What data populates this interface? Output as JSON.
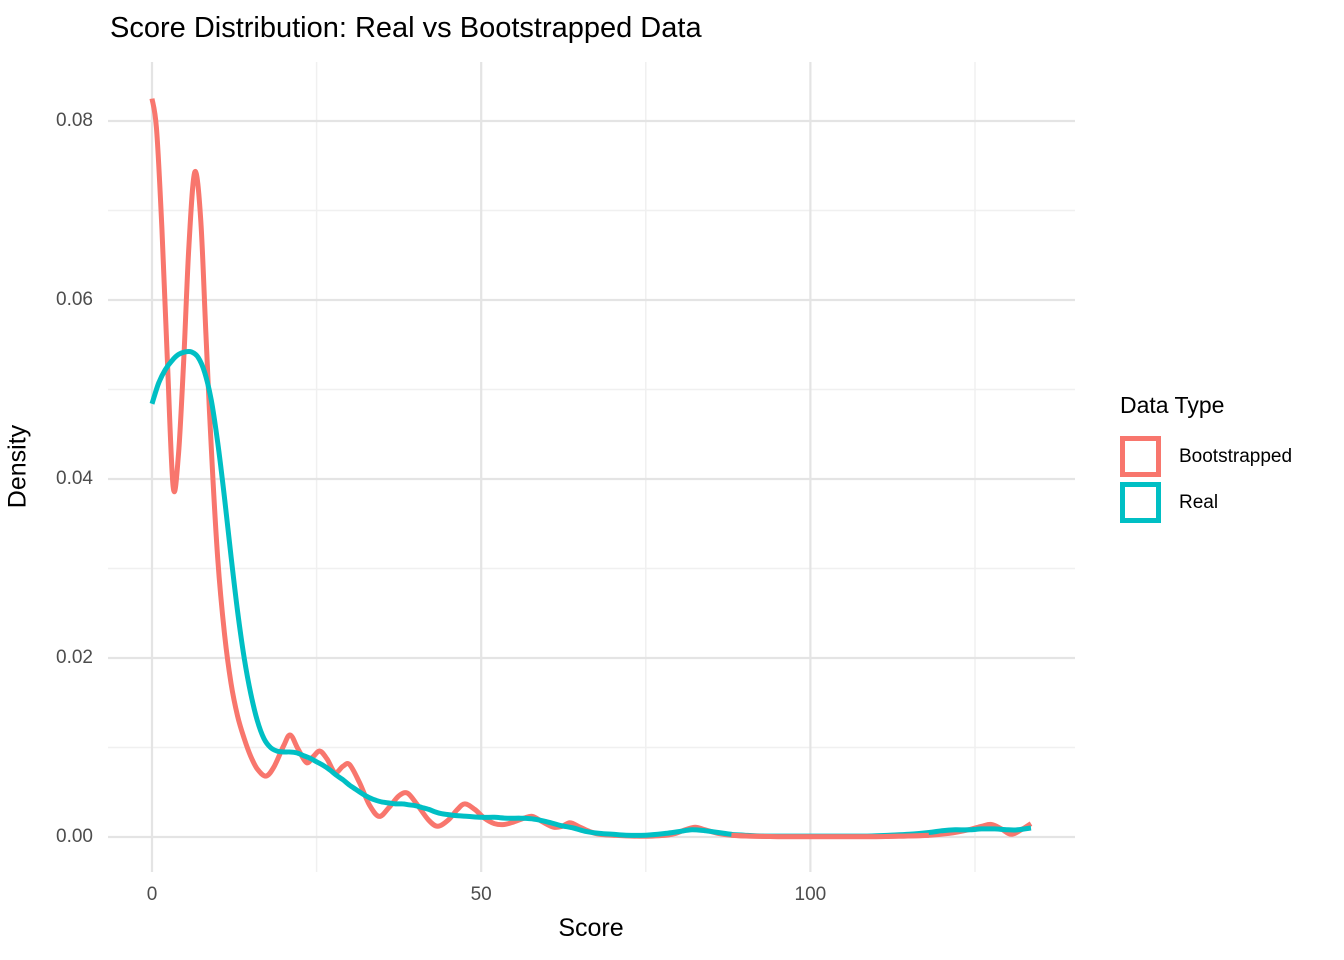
{
  "title": "Score Distribution: Real vs Bootstrapped Data",
  "legend": {
    "title": "Data Type",
    "entries": [
      {
        "label": "Bootstrapped",
        "color": "#F8766D"
      },
      {
        "label": "Real",
        "color": "#00BFC4"
      }
    ]
  },
  "chart_data": {
    "type": "line",
    "title": "Score Distribution: Real vs Bootstrapped Data",
    "xlabel": "Score",
    "ylabel": "Density",
    "xlim": [
      -6.7,
      140.2
    ],
    "ylim": [
      -0.0039,
      0.0866
    ],
    "grid": "major+minor",
    "legend_position": "right",
    "x_ticks": [
      0,
      50,
      100
    ],
    "x_tick_labels": [
      "0",
      "50",
      "100"
    ],
    "x_minor_ticks": [
      25,
      75,
      125
    ],
    "y_ticks": [
      0,
      0.02,
      0.04,
      0.06,
      0.08
    ],
    "y_tick_labels": [
      "0.00",
      "0.02",
      "0.04",
      "0.06",
      "0.08"
    ],
    "y_minor_ticks": [
      0.01,
      0.03,
      0.05,
      0.07
    ],
    "series": [
      {
        "name": "Bootstrapped",
        "color": "#F8766D",
        "points": [
          [
            0,
            0.0825
          ],
          [
            0.7,
            0.079
          ],
          [
            1.5,
            0.068
          ],
          [
            2.3,
            0.054
          ],
          [
            3.2,
            0.0392
          ],
          [
            4.0,
            0.0425
          ],
          [
            4.8,
            0.053
          ],
          [
            5.6,
            0.066
          ],
          [
            6.5,
            0.0743
          ],
          [
            7.4,
            0.069
          ],
          [
            8.2,
            0.056
          ],
          [
            9.0,
            0.0435
          ],
          [
            10,
            0.031
          ],
          [
            11,
            0.0228
          ],
          [
            12,
            0.0172
          ],
          [
            13,
            0.0135
          ],
          [
            14,
            0.011
          ],
          [
            15,
            0.009
          ],
          [
            16,
            0.0076
          ],
          [
            17.3,
            0.0068
          ],
          [
            18.5,
            0.0078
          ],
          [
            20,
            0.0102
          ],
          [
            21,
            0.0114
          ],
          [
            22.2,
            0.0098
          ],
          [
            23.5,
            0.0083
          ],
          [
            24.5,
            0.009
          ],
          [
            25.5,
            0.0096
          ],
          [
            26.6,
            0.0087
          ],
          [
            27.8,
            0.0072
          ],
          [
            29,
            0.0079
          ],
          [
            30,
            0.0081
          ],
          [
            31.5,
            0.0061
          ],
          [
            33,
            0.0036
          ],
          [
            34.5,
            0.0023
          ],
          [
            36,
            0.0033
          ],
          [
            37.5,
            0.0046
          ],
          [
            38.8,
            0.0049
          ],
          [
            40.3,
            0.0036
          ],
          [
            42,
            0.0019
          ],
          [
            43.4,
            0.0012
          ],
          [
            45,
            0.0019
          ],
          [
            46.3,
            0.003
          ],
          [
            47.5,
            0.0037
          ],
          [
            49,
            0.0031
          ],
          [
            50.5,
            0.0021
          ],
          [
            52,
            0.0015
          ],
          [
            53.5,
            0.0014
          ],
          [
            55,
            0.0017
          ],
          [
            56.5,
            0.0021
          ],
          [
            57.8,
            0.0023
          ],
          [
            59.3,
            0.0017
          ],
          [
            61,
            0.0011
          ],
          [
            62.3,
            0.0012
          ],
          [
            63.5,
            0.0016
          ],
          [
            65,
            0.0011
          ],
          [
            66.5,
            0.0006
          ],
          [
            68,
            0.0003
          ],
          [
            70,
            0.0002
          ],
          [
            73,
            0.0001
          ],
          [
            76,
            0.0001
          ],
          [
            79,
            0.0003
          ],
          [
            81,
            0.0008
          ],
          [
            82.5,
            0.0011
          ],
          [
            84,
            0.0008
          ],
          [
            86,
            0.0004
          ],
          [
            88,
            0.0002
          ],
          [
            91,
            0.0001
          ],
          [
            95,
            5e-05
          ],
          [
            100,
            4e-05
          ],
          [
            105,
            4e-05
          ],
          [
            110,
            5e-05
          ],
          [
            114,
            0.0001
          ],
          [
            118,
            0.0002
          ],
          [
            121,
            0.0004
          ],
          [
            124,
            0.0008
          ],
          [
            126,
            0.0012
          ],
          [
            127.5,
            0.0014
          ],
          [
            129,
            0.0009
          ],
          [
            130.5,
            0.0003
          ],
          [
            132,
            0.0008
          ],
          [
            133.5,
            0.0015
          ]
        ]
      },
      {
        "name": "Real",
        "color": "#00BFC4",
        "points": [
          [
            0,
            0.0484
          ],
          [
            1,
            0.0507
          ],
          [
            2,
            0.0522
          ],
          [
            3,
            0.0532
          ],
          [
            4,
            0.0539
          ],
          [
            5,
            0.0542
          ],
          [
            6,
            0.0542
          ],
          [
            7,
            0.0536
          ],
          [
            8,
            0.0519
          ],
          [
            9,
            0.0488
          ],
          [
            10,
            0.044
          ],
          [
            11,
            0.038
          ],
          [
            12,
            0.0314
          ],
          [
            13,
            0.0252
          ],
          [
            14,
            0.02
          ],
          [
            15,
            0.016
          ],
          [
            16,
            0.013
          ],
          [
            17,
            0.011
          ],
          [
            18,
            0.01
          ],
          [
            19,
            0.0096
          ],
          [
            20,
            0.0095
          ],
          [
            21,
            0.0095
          ],
          [
            22,
            0.0094
          ],
          [
            23,
            0.0091
          ],
          [
            24,
            0.0088
          ],
          [
            25,
            0.0084
          ],
          [
            26,
            0.008
          ],
          [
            27,
            0.0075
          ],
          [
            28,
            0.0069
          ],
          [
            29,
            0.0064
          ],
          [
            30,
            0.0058
          ],
          [
            31,
            0.0053
          ],
          [
            32,
            0.0048
          ],
          [
            33,
            0.0044
          ],
          [
            34,
            0.0041
          ],
          [
            35,
            0.0039
          ],
          [
            36,
            0.0038
          ],
          [
            37,
            0.0037
          ],
          [
            38,
            0.0037
          ],
          [
            39,
            0.0036
          ],
          [
            40,
            0.0035
          ],
          [
            41,
            0.0033
          ],
          [
            42,
            0.0031
          ],
          [
            43,
            0.0028
          ],
          [
            44,
            0.0026
          ],
          [
            45,
            0.0025
          ],
          [
            46,
            0.0024
          ],
          [
            48,
            0.0023
          ],
          [
            50,
            0.0022
          ],
          [
            52,
            0.0022
          ],
          [
            54,
            0.0021
          ],
          [
            56,
            0.0021
          ],
          [
            58,
            0.002
          ],
          [
            60,
            0.0017
          ],
          [
            62,
            0.0013
          ],
          [
            64,
            0.001
          ],
          [
            66,
            0.0006
          ],
          [
            68,
            0.0004
          ],
          [
            70,
            0.0003
          ],
          [
            72,
            0.0002
          ],
          [
            75,
            0.0002
          ],
          [
            78,
            0.0004
          ],
          [
            80,
            0.0006
          ],
          [
            82,
            0.0008
          ],
          [
            84,
            0.0007
          ],
          [
            86,
            0.0005
          ],
          [
            88,
            0.0003
          ],
          [
            90,
            0.0002
          ],
          [
            93,
            0.0001
          ],
          [
            96,
            0.0001
          ],
          [
            100,
            0.0001
          ],
          [
            104,
            0.0001
          ],
          [
            108,
            0.0001
          ],
          [
            112,
            0.0002
          ],
          [
            115,
            0.0003
          ],
          [
            118,
            0.0005
          ],
          [
            120,
            0.0007
          ],
          [
            122,
            0.0008
          ],
          [
            124,
            0.0008
          ],
          [
            126,
            0.0009
          ],
          [
            128,
            0.0009
          ],
          [
            130,
            0.0008
          ],
          [
            131.5,
            0.0008
          ],
          [
            133.5,
            0.001
          ]
        ]
      }
    ]
  }
}
